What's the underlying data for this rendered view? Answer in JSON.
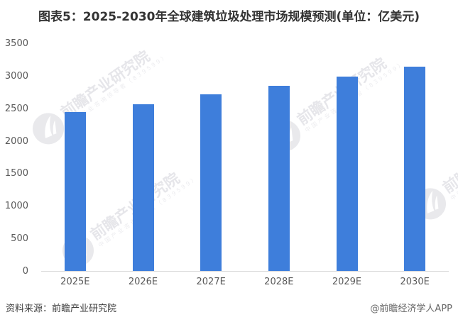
{
  "title": "图表5：2025-2030年全球建筑垃圾处理市场规模预测(单位：亿美元)",
  "footer": {
    "source": "资料来源：前瞻产业研究院",
    "credit": "@前瞻经济学人APP"
  },
  "watermark": {
    "text": "前瞻产业研究院",
    "subtext": "中国产业咨询领导者（839599）",
    "logo": "qianzhan-bird-logo"
  },
  "colors": {
    "bar": "#3E7EDB",
    "title_text": "#333333",
    "axis_text": "#595959",
    "baseline": "#d9d9d9",
    "watermark": "#e6e6ea"
  },
  "chart_data": {
    "type": "bar",
    "title": "图表5：2025-2030年全球建筑垃圾处理市场规模预测(单位：亿美元)",
    "categories": [
      "2025E",
      "2026E",
      "2027E",
      "2028E",
      "2029E",
      "2030E"
    ],
    "values": [
      2440,
      2560,
      2710,
      2850,
      2990,
      3140
    ],
    "xlabel": "",
    "ylabel": "",
    "ylim": [
      0,
      3500
    ],
    "yticks": [
      0,
      500,
      1000,
      1500,
      2000,
      2500,
      3000,
      3500
    ],
    "grid": false,
    "legend": false,
    "bar_color": "#3E7EDB"
  }
}
